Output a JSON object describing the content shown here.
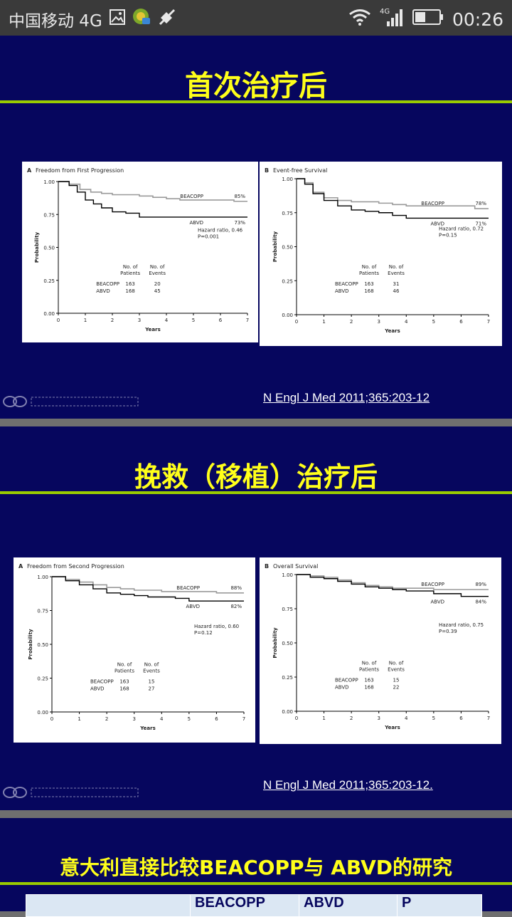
{
  "status_bar": {
    "carrier": "中国移动 4G",
    "network": "4G",
    "time": "00:26",
    "icons": [
      "image-icon",
      "notification-app-icon",
      "mute-icon",
      "wifi-icon",
      "signal-icon",
      "battery-icon"
    ]
  },
  "slide1": {
    "title": "首次治疗后",
    "citation": "N Engl J Med 2011;365:203-12",
    "chart_a": {
      "panel": "A",
      "title": "Freedom from First Progression",
      "ylabel": "Probability",
      "xlabel": "Years",
      "xticks": [
        "0",
        "1",
        "2",
        "3",
        "4",
        "5",
        "6",
        "7"
      ],
      "yticks": [
        "0.00",
        "0.25",
        "0.50",
        "0.75",
        "1.00"
      ],
      "series": [
        {
          "name": "BEACOPP",
          "end_label": "85%",
          "color": "#9a9a9a"
        },
        {
          "name": "ABVD",
          "end_label": "73%",
          "color": "#000000"
        }
      ],
      "hazard": "Hazard ratio, 0.46",
      "p": "P=0.001",
      "table_headers": [
        "No. of Patients",
        "No. of Events"
      ],
      "table_rows": [
        [
          "BEACOPP",
          "163",
          "20"
        ],
        [
          "ABVD",
          "168",
          "45"
        ]
      ]
    },
    "chart_b": {
      "panel": "B",
      "title": "Event-free Survival",
      "ylabel": "Probability",
      "xlabel": "Years",
      "xticks": [
        "0",
        "1",
        "2",
        "3",
        "4",
        "5",
        "6",
        "7"
      ],
      "yticks": [
        "0.00",
        "0.25",
        "0.50",
        "0.75",
        "1.00"
      ],
      "series": [
        {
          "name": "BEACOPP",
          "end_label": "78%",
          "color": "#9a9a9a"
        },
        {
          "name": "ABVD",
          "end_label": "71%",
          "color": "#000000"
        }
      ],
      "hazard": "Hazard ratio, 0.72",
      "p": "P=0.15",
      "table_headers": [
        "No. of Patients",
        "No. of Events"
      ],
      "table_rows": [
        [
          "BEACOPP",
          "163",
          "31"
        ],
        [
          "ABVD",
          "168",
          "46"
        ]
      ]
    }
  },
  "slide2": {
    "title": "挽救（移植）治疗后",
    "citation": "N Engl J Med 2011;365:203-12.",
    "chart_a": {
      "panel": "A",
      "title": "Freedom from Second Progression",
      "ylabel": "Probability",
      "xlabel": "Years",
      "xticks": [
        "0",
        "1",
        "2",
        "3",
        "4",
        "5",
        "6",
        "7"
      ],
      "yticks": [
        "0.00",
        "0.25",
        "0.50",
        "0.75",
        "1.00"
      ],
      "series": [
        {
          "name": "BEACOPP",
          "end_label": "88%",
          "color": "#9a9a9a"
        },
        {
          "name": "ABVD",
          "end_label": "82%",
          "color": "#000000"
        }
      ],
      "hazard": "Hazard ratio, 0.60",
      "p": "P=0.12",
      "table_headers": [
        "No. of Patients",
        "No. of Events"
      ],
      "table_rows": [
        [
          "BEACOPP",
          "163",
          "15"
        ],
        [
          "ABVD",
          "168",
          "27"
        ]
      ]
    },
    "chart_b": {
      "panel": "B",
      "title": "Overall Survival",
      "ylabel": "Probability",
      "xlabel": "Years",
      "xticks": [
        "0",
        "1",
        "2",
        "3",
        "4",
        "5",
        "6",
        "7"
      ],
      "yticks": [
        "0.00",
        "0.25",
        "0.50",
        "0.75",
        "1.00"
      ],
      "series": [
        {
          "name": "BEACOPP",
          "end_label": "89%",
          "color": "#9a9a9a"
        },
        {
          "name": "ABVD",
          "end_label": "84%",
          "color": "#000000"
        }
      ],
      "hazard": "Hazard ratio, 0.75",
      "p": "P=0.39",
      "table_headers": [
        "No. of Patients",
        "No. of Events"
      ],
      "table_rows": [
        [
          "BEACOPP",
          "163",
          "15"
        ],
        [
          "ABVD",
          "168",
          "22"
        ]
      ]
    }
  },
  "slide3": {
    "title": "意大利直接比较BEACOPP与 ABVD的研究",
    "table_headers": [
      "",
      "BEACOPP",
      "ABVD",
      "P"
    ]
  },
  "chart_data": [
    {
      "type": "line",
      "title": "Freedom from First Progression",
      "xlabel": "Years",
      "ylabel": "Probability",
      "xlim": [
        0,
        7
      ],
      "ylim": [
        0,
        1
      ],
      "series": [
        {
          "name": "BEACOPP",
          "x": [
            0,
            0.4,
            0.8,
            1.2,
            1.6,
            2,
            2.5,
            3,
            3.5,
            4,
            4.5,
            5,
            5.5,
            6,
            6.5,
            7
          ],
          "y": [
            1,
            0.98,
            0.94,
            0.92,
            0.91,
            0.9,
            0.9,
            0.89,
            0.88,
            0.87,
            0.86,
            0.86,
            0.86,
            0.86,
            0.85,
            0.85
          ]
        },
        {
          "name": "ABVD",
          "x": [
            0,
            0.4,
            0.7,
            1,
            1.3,
            1.6,
            2,
            2.5,
            3,
            3.5,
            4,
            5,
            6,
            7
          ],
          "y": [
            1,
            0.97,
            0.92,
            0.86,
            0.83,
            0.8,
            0.77,
            0.76,
            0.73,
            0.73,
            0.73,
            0.73,
            0.73,
            0.73
          ]
        }
      ]
    },
    {
      "type": "line",
      "title": "Event-free Survival",
      "xlabel": "Years",
      "ylabel": "Probability",
      "xlim": [
        0,
        7
      ],
      "ylim": [
        0,
        1
      ],
      "series": [
        {
          "name": "BEACOPP",
          "x": [
            0,
            0.3,
            0.6,
            1,
            1.5,
            2,
            2.5,
            3,
            3.5,
            4,
            5,
            6,
            6.5,
            7
          ],
          "y": [
            1,
            0.97,
            0.9,
            0.86,
            0.84,
            0.83,
            0.83,
            0.82,
            0.81,
            0.8,
            0.8,
            0.8,
            0.78,
            0.78
          ]
        },
        {
          "name": "ABVD",
          "x": [
            0,
            0.3,
            0.6,
            1,
            1.5,
            2,
            2.5,
            3,
            3.5,
            4,
            5,
            6,
            7
          ],
          "y": [
            1,
            0.96,
            0.89,
            0.84,
            0.8,
            0.77,
            0.76,
            0.75,
            0.73,
            0.71,
            0.71,
            0.71,
            0.71
          ]
        }
      ]
    },
    {
      "type": "line",
      "title": "Freedom from Second Progression",
      "xlabel": "Years",
      "ylabel": "Probability",
      "xlim": [
        0,
        7
      ],
      "ylim": [
        0,
        1
      ],
      "series": [
        {
          "name": "BEACOPP",
          "x": [
            0,
            0.5,
            1,
            1.5,
            2,
            2.5,
            3,
            3.5,
            4,
            5,
            6,
            7
          ],
          "y": [
            1,
            0.98,
            0.96,
            0.94,
            0.92,
            0.91,
            0.9,
            0.9,
            0.89,
            0.89,
            0.88,
            0.88
          ]
        },
        {
          "name": "ABVD",
          "x": [
            0,
            0.5,
            1,
            1.5,
            2,
            2.5,
            3,
            3.5,
            4,
            4.5,
            5,
            6,
            7
          ],
          "y": [
            1,
            0.97,
            0.94,
            0.91,
            0.88,
            0.87,
            0.86,
            0.85,
            0.85,
            0.84,
            0.82,
            0.82,
            0.82
          ]
        }
      ]
    },
    {
      "type": "line",
      "title": "Overall Survival",
      "xlabel": "Years",
      "ylabel": "Probability",
      "xlim": [
        0,
        7
      ],
      "ylim": [
        0,
        1
      ],
      "series": [
        {
          "name": "BEACOPP",
          "x": [
            0,
            0.5,
            1,
            1.5,
            2,
            2.5,
            3,
            3.5,
            4,
            5,
            6,
            7
          ],
          "y": [
            1,
            0.99,
            0.98,
            0.96,
            0.94,
            0.92,
            0.91,
            0.9,
            0.9,
            0.89,
            0.89,
            0.89
          ]
        },
        {
          "name": "ABVD",
          "x": [
            0,
            0.5,
            1,
            1.5,
            2,
            2.5,
            3,
            3.5,
            4,
            5,
            6,
            7
          ],
          "y": [
            1,
            0.98,
            0.97,
            0.95,
            0.93,
            0.91,
            0.9,
            0.89,
            0.88,
            0.86,
            0.84,
            0.84
          ]
        }
      ]
    }
  ]
}
